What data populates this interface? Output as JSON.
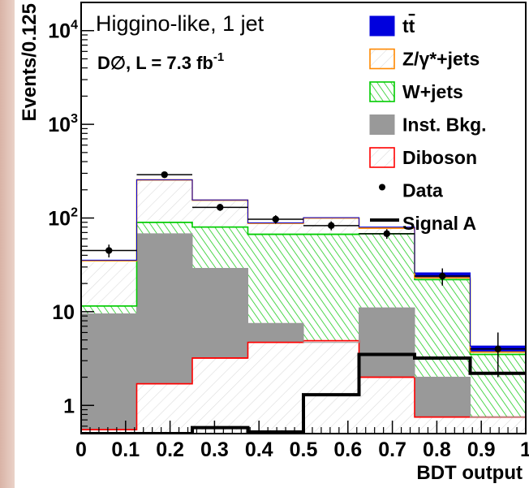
{
  "plot": {
    "title": "Higgino-like, 1 jet",
    "experiment": "D∅, L = 7.3 fb",
    "lumi_exponent": "-1"
  },
  "chart_data": {
    "type": "bar",
    "stacked": true,
    "xlabel": "BDT output",
    "ylabel": "Events/0.125",
    "xlim": [
      0,
      1
    ],
    "ylim": [
      0.5,
      20000
    ],
    "yscale": "log",
    "bin_edges": [
      0,
      0.125,
      0.25,
      0.375,
      0.5,
      0.625,
      0.75,
      0.875,
      1.0
    ],
    "x_ticks": [
      "0",
      "0.1",
      "0.2",
      "0.3",
      "0.4",
      "0.5",
      "0.6",
      "0.7",
      "0.8",
      "0.9",
      "1"
    ],
    "x_tick_values": [
      0,
      0.1,
      0.2,
      0.3,
      0.4,
      0.5,
      0.6,
      0.7,
      0.8,
      0.9,
      1.0
    ],
    "y_ticks": [
      {
        "value": 1,
        "base": "1",
        "exp": ""
      },
      {
        "value": 10,
        "base": "10",
        "exp": ""
      },
      {
        "value": 100,
        "base": "10",
        "exp": "2"
      },
      {
        "value": 1000,
        "base": "10",
        "exp": "3"
      },
      {
        "value": 10000,
        "base": "10",
        "exp": "4"
      }
    ],
    "stack_order": [
      "Diboson",
      "Inst. Bkg.",
      "W+jets",
      "Z/γ*+jets",
      "t̄t"
    ],
    "series": [
      {
        "name": "Diboson",
        "color": "#ff0000",
        "fill": "hatch-light",
        "cumulative": [
          0.55,
          1.7,
          3.2,
          4.7,
          4.9,
          2.0,
          0.75,
          0.75
        ]
      },
      {
        "name": "Inst. Bkg.",
        "color": "#999999",
        "fill": "solid",
        "cumulative": [
          9.5,
          68,
          29,
          7.5,
          4.7,
          11,
          2.0,
          0.75
        ]
      },
      {
        "name": "W+jets",
        "color": "#00cc00",
        "fill": "hatch-green",
        "cumulative": [
          11.5,
          90,
          80,
          67,
          67,
          68,
          22,
          3.5
        ]
      },
      {
        "name": "Z/γ*+jets",
        "color": "#ff8800",
        "fill": "hatch-light",
        "cumulative": [
          35,
          255,
          155,
          88,
          100,
          78,
          23,
          3.7
        ]
      },
      {
        "name": "t̄t",
        "color": "#0000dd",
        "fill": "solid",
        "cumulative": [
          35.5,
          256,
          156,
          89,
          101,
          80,
          26,
          4.3
        ]
      }
    ],
    "data": {
      "name": "Data",
      "x": [
        0.0625,
        0.1875,
        0.3125,
        0.4375,
        0.5625,
        0.6875,
        0.8125,
        0.9375
      ],
      "y": [
        45,
        290,
        130,
        97,
        83,
        68,
        24,
        4
      ],
      "yerr": [
        7,
        17,
        11,
        10,
        9,
        8,
        5,
        2
      ]
    },
    "signal": {
      "name": "Signal A",
      "values": [
        0.5,
        0.5,
        0.58,
        0.52,
        1.3,
        3.5,
        3.2,
        2.2
      ]
    },
    "legend": {
      "position": "top-right",
      "items": [
        {
          "label": "t",
          "label_suffix": "t",
          "kind": "box-solid",
          "color": "#0000dd"
        },
        {
          "label": "Z/γ*+jets",
          "kind": "box-hatch",
          "color": "#ff8800"
        },
        {
          "label": "W+jets",
          "kind": "box-hatch-green",
          "color": "#00cc00"
        },
        {
          "label": "Inst. Bkg.",
          "kind": "box-solid",
          "color": "#999999"
        },
        {
          "label": "Diboson",
          "kind": "box-hatch",
          "color": "#ff0000"
        },
        {
          "label": "Data",
          "kind": "dot",
          "color": "#000000"
        },
        {
          "label": "Signal A",
          "kind": "line",
          "color": "#000000"
        }
      ]
    }
  }
}
